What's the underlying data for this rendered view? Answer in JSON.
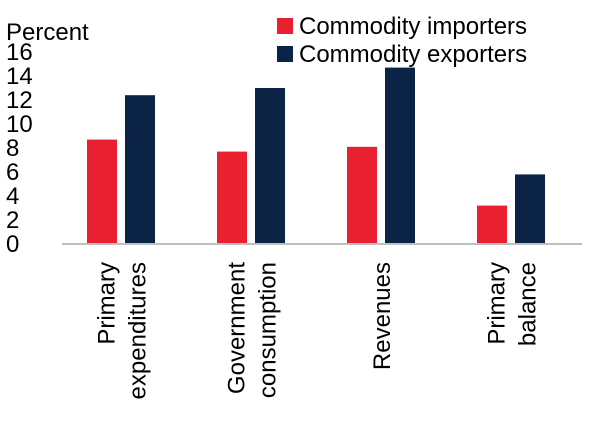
{
  "chart_data": {
    "type": "bar",
    "unit_label": "Percent",
    "categories": [
      [
        "Primary",
        "expenditures"
      ],
      [
        "Government",
        "consumption"
      ],
      [
        "Revenues"
      ],
      [
        "Primary",
        "balance"
      ]
    ],
    "series": [
      {
        "name": "Commodity importers",
        "color": "#e8202f",
        "values": [
          8.7,
          7.7,
          8.1,
          3.2
        ]
      },
      {
        "name": "Commodity exporters",
        "color": "#0b2345",
        "values": [
          12.4,
          13.0,
          14.7,
          5.8
        ]
      }
    ],
    "ylim": [
      0,
      16
    ],
    "yticks": [
      0,
      2,
      4,
      6,
      8,
      10,
      12,
      14,
      16
    ],
    "grid": false,
    "legend": "top-right"
  }
}
